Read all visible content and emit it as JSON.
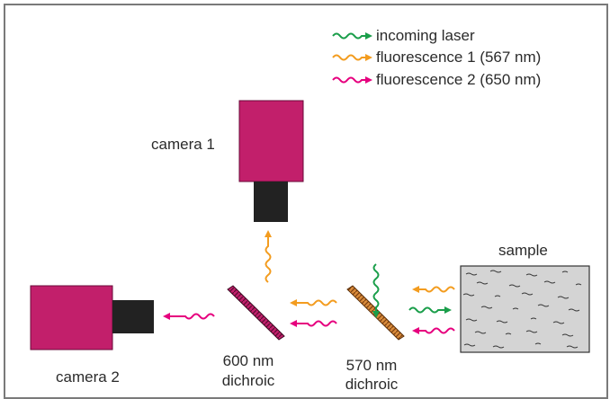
{
  "legend": {
    "items": [
      {
        "label": "incoming laser",
        "color": "#1a9e4a"
      },
      {
        "label": "fluorescence 1 (567 nm)",
        "color": "#f39c1f"
      },
      {
        "label": "fluorescence 2 (650 nm)",
        "color": "#e6007e"
      }
    ]
  },
  "labels": {
    "camera1": "camera 1",
    "camera2": "camera 2",
    "sample": "sample",
    "dichroic600_line1": "600 nm",
    "dichroic600_line2": "dichroic",
    "dichroic570_line1": "570 nm",
    "dichroic570_line2": "dichroic"
  },
  "colors": {
    "camera_body": "#c21f6b",
    "camera_lens": "#222222",
    "frame": "#7a7a7a",
    "sample_fill": "#d4d4d4",
    "dichroic600": "#c21f6b",
    "dichroic570": "#c9823c"
  }
}
